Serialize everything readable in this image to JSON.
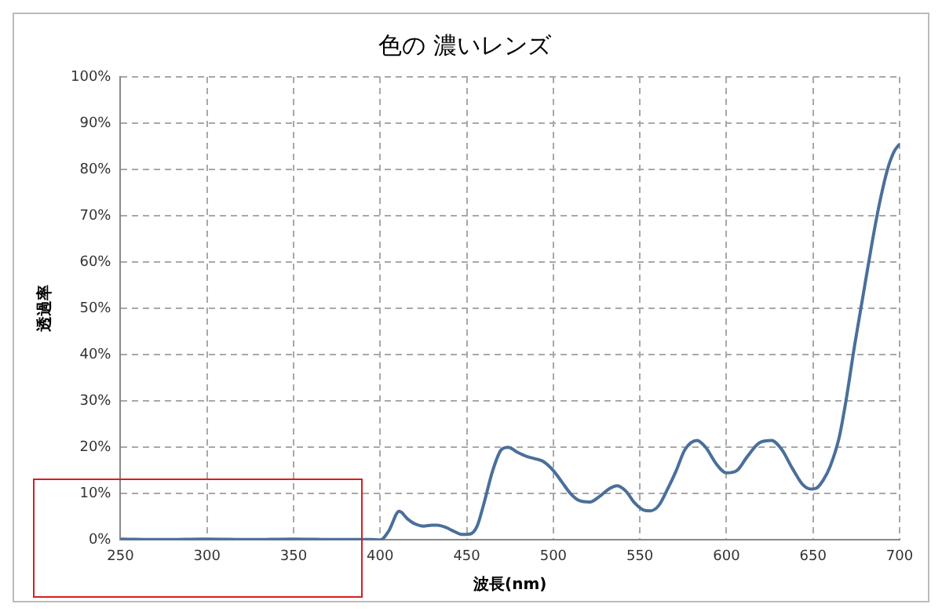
{
  "chart_data": {
    "type": "line",
    "title": "色の 濃いレンズ",
    "xlabel": "波長(nm)",
    "ylabel": "透過率",
    "x": [
      250,
      275,
      300,
      325,
      350,
      375,
      395,
      400,
      405,
      411,
      416,
      420,
      425,
      430,
      433,
      438,
      443,
      447,
      452,
      456,
      460,
      465,
      470,
      474,
      479,
      485,
      490,
      494,
      500,
      505,
      510,
      515,
      521,
      527,
      532,
      537,
      542,
      547,
      552,
      556,
      561,
      566,
      571,
      576,
      583,
      588,
      594,
      600,
      606,
      612,
      619,
      626,
      632,
      638,
      644,
      649,
      652,
      656,
      660,
      665,
      669,
      674,
      679,
      684,
      688,
      693,
      697,
      700
    ],
    "series": [
      {
        "color": "#4a6f9a",
        "values": [
          0.2,
          0.1,
          0.2,
          0.1,
          0.2,
          0.1,
          0.1,
          0,
          2,
          6.2,
          4.5,
          3.5,
          3,
          3.2,
          3.2,
          2.7,
          1.8,
          1.2,
          1.3,
          3,
          8,
          15,
          19.5,
          20,
          19,
          18,
          17.5,
          17,
          15,
          12.5,
          10,
          8.5,
          8.2,
          9.5,
          11,
          11.7,
          10.5,
          8,
          6.5,
          6.3,
          7.5,
          11,
          15,
          19.5,
          21.5,
          20,
          16.5,
          14.5,
          15,
          18,
          21,
          21.5,
          19.5,
          15.5,
          12,
          11,
          11.2,
          13,
          16,
          22,
          30,
          42,
          53,
          64,
          72,
          80,
          84,
          85.5
        ]
      }
    ],
    "xlim": [
      250,
      700
    ],
    "xticks": [
      250,
      300,
      350,
      400,
      450,
      500,
      550,
      600,
      650,
      700
    ],
    "ylim": [
      0,
      100
    ],
    "yticks": [
      {
        "value": 0,
        "label": "0%"
      },
      {
        "value": 10,
        "label": "10%"
      },
      {
        "value": 20,
        "label": "20%"
      },
      {
        "value": 30,
        "label": "30%"
      },
      {
        "value": 40,
        "label": "40%"
      },
      {
        "value": 50,
        "label": "50%"
      },
      {
        "value": 60,
        "label": "60%"
      },
      {
        "value": 70,
        "label": "70%"
      },
      {
        "value": 80,
        "label": "80%"
      },
      {
        "value": 90,
        "label": "90%"
      },
      {
        "value": 100,
        "label": "100%"
      }
    ],
    "grid": true,
    "legend": false,
    "marker": "none",
    "line_style": "solid"
  }
}
